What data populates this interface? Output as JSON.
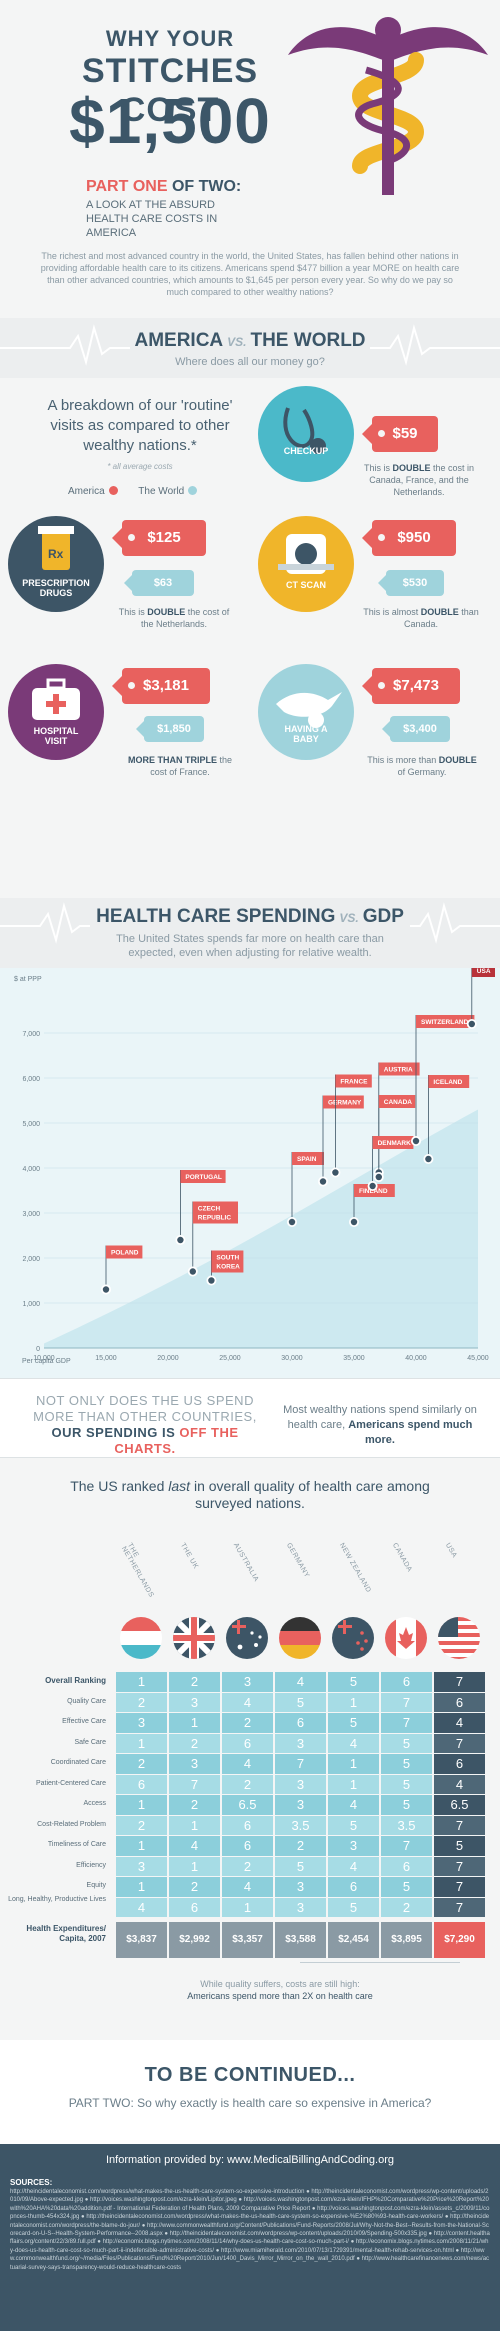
{
  "hero": {
    "title_line1": "WHY YOUR",
    "title_line2": "STITCHES COST",
    "title_line3": "$1,500",
    "part_prefix": "PART ONE ",
    "part_of": "OF TWO:",
    "part_subtitle": "A LOOK AT THE ABSURD HEALTH CARE COSTS IN AMERICA",
    "intro": "The richest and most advanced country in the world, the United States, has fallen behind other nations in providing affordable health care to its citizens. Americans spend $477 billion a year MORE on health care than other advanced countries, which amounts to $1,645 per person every year. So why do we pay so much compared to other wealthy nations?"
  },
  "world_banner": {
    "left": "AMERICA",
    "vs": "VS.",
    "right": "THE WORLD",
    "subtitle": "Where does all our money go?"
  },
  "world": {
    "lead": "A breakdown of our 'routine' visits as compared to other wealthy nations.*",
    "footnote": "* all average costs",
    "legend_america": "America",
    "legend_world": "The World",
    "colors": {
      "america": "#e8615e",
      "world": "#9fd3dc",
      "navy": "#3d5566",
      "teal": "#4bb9c9",
      "yellow": "#f0b52a",
      "purple": "#7a3a78"
    },
    "items": [
      {
        "label": "CHECKUP",
        "icon": "stethoscope-icon",
        "america": "$59",
        "note_pre": "This is ",
        "note_b": "DOUBLE",
        "note_post": " the cost in Canada, France, and the Netherlands."
      },
      {
        "label": "PRESCRIPTION DRUGS",
        "icon": "pill-bottle-icon",
        "america": "$125",
        "world": "$63",
        "note_pre": "This is ",
        "note_b": "DOUBLE",
        "note_post": " the cost of the Netherlands."
      },
      {
        "label": "CT SCAN",
        "icon": "ct-scanner-icon",
        "america": "$950",
        "world": "$530",
        "note_pre": "This is almost ",
        "note_b": "DOUBLE",
        "note_post": " than Canada."
      },
      {
        "label": "HOSPITAL VISIT",
        "icon": "medical-bag-icon",
        "america": "$3,181",
        "world": "$1,850",
        "note_pre": "",
        "note_b": "MORE THAN TRIPLE",
        "note_post": " the cost of France."
      },
      {
        "label": "HAVING A BABY",
        "icon": "stork-icon",
        "america": "$7,473",
        "world": "$3,400",
        "note_pre": "This is more than ",
        "note_b": "DOUBLE",
        "note_post": " of Germany."
      }
    ]
  },
  "gdp_banner": {
    "left": "HEALTH CARE SPENDING",
    "vs": "VS.",
    "right": "GDP",
    "subtitle": "The United States spends far more on health care than expected, even when adjusting for relative wealth."
  },
  "chart_data": {
    "type": "scatter",
    "ylabel": "$ at PPP",
    "xlabel": "Per capita GDP",
    "xlim": [
      10000,
      45000
    ],
    "ylim": [
      0,
      8000
    ],
    "x_ticks": [
      "10,000",
      "15,000",
      "20,000",
      "25,000",
      "30,000",
      "35,000",
      "40,000",
      "45,000"
    ],
    "y_ticks": [
      "0",
      "1,000",
      "2,000",
      "3,000",
      "4,000",
      "5,000",
      "6,000",
      "7,000"
    ],
    "points": [
      {
        "name": "POLAND",
        "x": 15000,
        "y": 1300
      },
      {
        "name": "PORTUGAL",
        "x": 21000,
        "y": 2400
      },
      {
        "name": "CZECH REPUBLIC",
        "x": 22000,
        "y": 1700
      },
      {
        "name": "SOUTH KOREA",
        "x": 23500,
        "y": 1500
      },
      {
        "name": "SPAIN",
        "x": 30000,
        "y": 2800
      },
      {
        "name": "GERMANY",
        "x": 32500,
        "y": 3700
      },
      {
        "name": "FRANCE",
        "x": 33500,
        "y": 3900
      },
      {
        "name": "FINLAND",
        "x": 35000,
        "y": 2800
      },
      {
        "name": "AUSTRIA",
        "x": 37000,
        "y": 3900
      },
      {
        "name": "CANADA",
        "x": 37000,
        "y": 3800
      },
      {
        "name": "DENMARK",
        "x": 36500,
        "y": 3600
      },
      {
        "name": "SWITZERLAND",
        "x": 40000,
        "y": 4600
      },
      {
        "name": "ICELAND",
        "x": 41000,
        "y": 4200
      },
      {
        "name": "USA",
        "x": 44500,
        "y": 7200
      }
    ]
  },
  "compare": {
    "left_1": "NOT ONLY DOES THE US SPEND MORE THAN OTHER COUNTRIES, ",
    "left_2": "OUR SPENDING IS ",
    "left_3": "OFF THE CHARTS.",
    "right_1": "Most wealthy nations spend similarly on health care, ",
    "right_2": "Americans spend much more."
  },
  "ranking": {
    "title_pre": "The US ranked ",
    "title_em": "last",
    "title_post": " in overall quality of health care among surveyed nations.",
    "countries": [
      "THE NETHERLANDS",
      "THE UK",
      "AUSTRALIA",
      "GERMANY",
      "NEW ZEALAND",
      "CANADA",
      "USA"
    ],
    "flag_icons": [
      "netherlands-flag-icon",
      "uk-flag-icon",
      "australia-flag-icon",
      "germany-flag-icon",
      "new-zealand-flag-icon",
      "canada-flag-icon",
      "usa-flag-icon"
    ],
    "rows": [
      {
        "label": "Overall Ranking",
        "values": [
          "1",
          "2",
          "3",
          "4",
          "5",
          "6",
          "7"
        ]
      },
      {
        "label": "Quality Care",
        "values": [
          "2",
          "3",
          "4",
          "5",
          "1",
          "7",
          "6"
        ]
      },
      {
        "label": "Effective Care",
        "values": [
          "3",
          "1",
          "2",
          "6",
          "5",
          "7",
          "4"
        ]
      },
      {
        "label": "Safe Care",
        "values": [
          "1",
          "2",
          "6",
          "3",
          "4",
          "5",
          "7"
        ]
      },
      {
        "label": "Coordinated Care",
        "values": [
          "2",
          "3",
          "4",
          "7",
          "1",
          "5",
          "6"
        ]
      },
      {
        "label": "Patient-Centered Care",
        "values": [
          "6",
          "7",
          "2",
          "3",
          "1",
          "5",
          "4"
        ]
      },
      {
        "label": "Access",
        "values": [
          "1",
          "2",
          "6.5",
          "3",
          "4",
          "5",
          "6.5"
        ]
      },
      {
        "label": "Cost-Related Problem",
        "values": [
          "2",
          "1",
          "6",
          "3.5",
          "5",
          "3.5",
          "7"
        ]
      },
      {
        "label": "Timeliness of Care",
        "values": [
          "1",
          "4",
          "6",
          "2",
          "3",
          "7",
          "5"
        ]
      },
      {
        "label": "Efficiency",
        "values": [
          "3",
          "1",
          "2",
          "5",
          "4",
          "6",
          "7"
        ]
      },
      {
        "label": "Equity",
        "values": [
          "1",
          "2",
          "4",
          "3",
          "6",
          "5",
          "7"
        ]
      },
      {
        "label": "Long, Healthy, Productive Lives",
        "values": [
          "4",
          "6",
          "1",
          "3",
          "5",
          "2",
          "7"
        ]
      }
    ],
    "expenditure_label": "Health Expenditures/ Capita, 2007",
    "expenditures": [
      "$3,837",
      "$2,992",
      "$3,357",
      "$3,588",
      "$2,454",
      "$3,895",
      "$7,290"
    ],
    "footer_1": "While quality suffers, costs are still high:",
    "footer_2": "Americans spend more than 2X on health care"
  },
  "continued": {
    "title": "TO BE CONTINUED...",
    "subtitle": "PART TWO: So why exactly is health care so expensive in America?"
  },
  "sources": {
    "provided_by": "Information provided by: www.MedicalBillingAndCoding.org",
    "heading": "SOURCES:",
    "text": "http://theincidentaleconomist.com/wordpress/what-makes-the-us-health-care-system-so-expensive-introduction ● http://theincidentaleconomist.com/wordpress/wp-content/uploads/2010/09/Above-expected.jpg ● http://voices.washingtonpost.com/ezra-klein/Lipitor.jpeg ● http://voices.washingtonpost.com/ezra-klein/IFHP%20Comparative%20Price%20Report%20with%20AHA%20data%20addition.pdf - International Federation of Health Plans, 2009 Comparative Price Report ● http://voices.washingtonpost.com/ezra-klein/assets_c/2009/11/copnces-thumb-454x324.jpg ● http://theincidentaleconomist.com/wordpress/what-makes-the-us-health-care-system-so-expensive-%E2%80%93-health-care-workers/ ● http://theincidentaleconomist.com/wordpress/the-blame-do-jour/ ● http://www.commonwealthfund.org/Content/Publications/Fund-Reports/2008/Jul/Why-Not-the-Best--Results-from-the-National-Scorecard-on-U-S--Health-System-Performance--2008.aspx ● http://theincidentaleconomist.com/wordpress/wp-content/uploads/2010/09/Spending-500x335.jpg ● http://content.healthaffairs.org/content/22/3/89.full.pdf ● http://economix.blogs.nytimes.com/2008/11/14/why-does-us-health-care-cost-so-much-part-i/ ● http://economix.blogs.nytimes.com/2008/11/21/why-does-us-health-care-cost-so-much-part-ii-indefensible-administrative-costs/ ● http://www.miamiherald.com/2010/07/13/1729391/mental-health-rehab-services-on.html ● http://www.commonwealthfund.org/~/media/Files/Publications/Fund%20Report/2010/Jun/1400_Davis_Mirror_Mirror_on_the_wall_2010.pdf ● http://www.healthcarefinancenews.com/news/actuarial-survey-says-transparency-would-reduce-healthcare-costs"
  }
}
